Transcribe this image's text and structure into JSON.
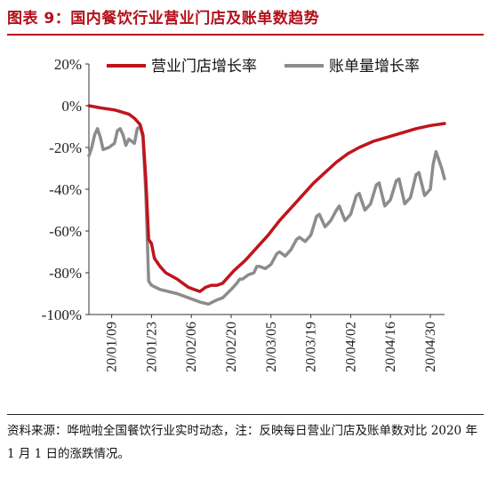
{
  "figure": {
    "title": "图表 9：国内餐饮行业营业门店及账单数趋势",
    "source": "资料来源：哗啦啦全国餐饮行业实时动态，注：反映每日营业门店及账单数对比 2020 年 1 月 1 日的涨跌情况。"
  },
  "colors": {
    "title": "#b30f1a",
    "store_series": "#c0141c",
    "bill_series": "#8c8c8c"
  },
  "chart_data": {
    "type": "line",
    "title": "",
    "xlabel": "",
    "ylabel": "",
    "ylim": [
      -100,
      20
    ],
    "yticks": [
      20,
      0,
      -20,
      -40,
      -60,
      -80,
      -100
    ],
    "ytick_labels": [
      "20%",
      "0%",
      "-20%",
      "-40%",
      "-60%",
      "-80%",
      "-100%"
    ],
    "xticks": [
      "20/01/09",
      "20/01/23",
      "20/02/06",
      "20/02/20",
      "20/03/05",
      "20/03/19",
      "20/04/02",
      "20/04/16",
      "20/04/30"
    ],
    "x_start": "2020-01-01",
    "x_end": "2020-05-05",
    "grid": false,
    "legend": "top",
    "series": [
      {
        "name": "营业门店增长率",
        "color": "#c0141c",
        "points": [
          [
            "2020-01-01",
            0
          ],
          [
            "2020-01-05",
            -1
          ],
          [
            "2020-01-10",
            -2
          ],
          [
            "2020-01-15",
            -4
          ],
          [
            "2020-01-17",
            -6
          ],
          [
            "2020-01-19",
            -9
          ],
          [
            "2020-01-20",
            -14
          ],
          [
            "2020-01-21",
            -35
          ],
          [
            "2020-01-22",
            -64
          ],
          [
            "2020-01-23",
            -66
          ],
          [
            "2020-01-24",
            -73
          ],
          [
            "2020-01-26",
            -77
          ],
          [
            "2020-01-28",
            -80
          ],
          [
            "2020-02-01",
            -83
          ],
          [
            "2020-02-03",
            -85
          ],
          [
            "2020-02-05",
            -87
          ],
          [
            "2020-02-07",
            -88
          ],
          [
            "2020-02-09",
            -89
          ],
          [
            "2020-02-11",
            -87
          ],
          [
            "2020-02-13",
            -86
          ],
          [
            "2020-02-15",
            -86
          ],
          [
            "2020-02-17",
            -85
          ],
          [
            "2020-02-19",
            -82
          ],
          [
            "2020-02-21",
            -79
          ],
          [
            "2020-02-25",
            -74
          ],
          [
            "2020-02-29",
            -68
          ],
          [
            "2020-03-04",
            -62
          ],
          [
            "2020-03-08",
            -55
          ],
          [
            "2020-03-12",
            -49
          ],
          [
            "2020-03-16",
            -43
          ],
          [
            "2020-03-20",
            -37
          ],
          [
            "2020-03-24",
            -32
          ],
          [
            "2020-03-28",
            -27
          ],
          [
            "2020-04-01",
            -23
          ],
          [
            "2020-04-05",
            -20
          ],
          [
            "2020-04-10",
            -17
          ],
          [
            "2020-04-15",
            -15
          ],
          [
            "2020-04-20",
            -13
          ],
          [
            "2020-04-25",
            -11
          ],
          [
            "2020-04-30",
            -9.5
          ],
          [
            "2020-05-05",
            -8.5
          ]
        ]
      },
      {
        "name": "账单量增长率",
        "color": "#8c8c8c",
        "points": [
          [
            "2020-01-01",
            -24
          ],
          [
            "2020-01-02",
            -20
          ],
          [
            "2020-01-03",
            -14
          ],
          [
            "2020-01-04",
            -11
          ],
          [
            "2020-01-05",
            -15
          ],
          [
            "2020-01-06",
            -21
          ],
          [
            "2020-01-08",
            -20
          ],
          [
            "2020-01-10",
            -18
          ],
          [
            "2020-01-11",
            -12
          ],
          [
            "2020-01-12",
            -11
          ],
          [
            "2020-01-13",
            -14
          ],
          [
            "2020-01-14",
            -19
          ],
          [
            "2020-01-15",
            -16
          ],
          [
            "2020-01-17",
            -18
          ],
          [
            "2020-01-18",
            -11
          ],
          [
            "2020-01-19",
            -10
          ],
          [
            "2020-01-20",
            -15
          ],
          [
            "2020-01-21",
            -42
          ],
          [
            "2020-01-22",
            -84
          ],
          [
            "2020-01-23",
            -86
          ],
          [
            "2020-01-26",
            -88
          ],
          [
            "2020-02-01",
            -90
          ],
          [
            "2020-02-05",
            -92
          ],
          [
            "2020-02-09",
            -94
          ],
          [
            "2020-02-12",
            -95
          ],
          [
            "2020-02-15",
            -93
          ],
          [
            "2020-02-17",
            -92
          ],
          [
            "2020-02-20",
            -88
          ],
          [
            "2020-02-22",
            -85
          ],
          [
            "2020-02-23",
            -83
          ],
          [
            "2020-02-24",
            -83
          ],
          [
            "2020-02-26",
            -81
          ],
          [
            "2020-02-28",
            -80
          ],
          [
            "2020-02-29",
            -77
          ],
          [
            "2020-03-01",
            -77
          ],
          [
            "2020-03-03",
            -78
          ],
          [
            "2020-03-05",
            -76
          ],
          [
            "2020-03-07",
            -71
          ],
          [
            "2020-03-08",
            -70
          ],
          [
            "2020-03-10",
            -72
          ],
          [
            "2020-03-12",
            -69
          ],
          [
            "2020-03-14",
            -64
          ],
          [
            "2020-03-15",
            -63
          ],
          [
            "2020-03-17",
            -65
          ],
          [
            "2020-03-19",
            -62
          ],
          [
            "2020-03-21",
            -53
          ],
          [
            "2020-03-22",
            -52
          ],
          [
            "2020-03-24",
            -58
          ],
          [
            "2020-03-26",
            -55
          ],
          [
            "2020-03-28",
            -50
          ],
          [
            "2020-03-29",
            -48
          ],
          [
            "2020-03-31",
            -55
          ],
          [
            "2020-04-02",
            -52
          ],
          [
            "2020-04-04",
            -43
          ],
          [
            "2020-04-05",
            -42
          ],
          [
            "2020-04-07",
            -50
          ],
          [
            "2020-04-09",
            -47
          ],
          [
            "2020-04-11",
            -38
          ],
          [
            "2020-04-12",
            -37
          ],
          [
            "2020-04-14",
            -48
          ],
          [
            "2020-04-16",
            -45
          ],
          [
            "2020-04-18",
            -36
          ],
          [
            "2020-04-19",
            -35
          ],
          [
            "2020-04-21",
            -47
          ],
          [
            "2020-04-23",
            -44
          ],
          [
            "2020-04-25",
            -33
          ],
          [
            "2020-04-26",
            -32
          ],
          [
            "2020-04-28",
            -43
          ],
          [
            "2020-04-30",
            -40
          ],
          [
            "2020-05-01",
            -28
          ],
          [
            "2020-05-02",
            -22
          ],
          [
            "2020-05-03",
            -26
          ],
          [
            "2020-05-04",
            -30
          ],
          [
            "2020-05-05",
            -35
          ]
        ]
      }
    ]
  }
}
